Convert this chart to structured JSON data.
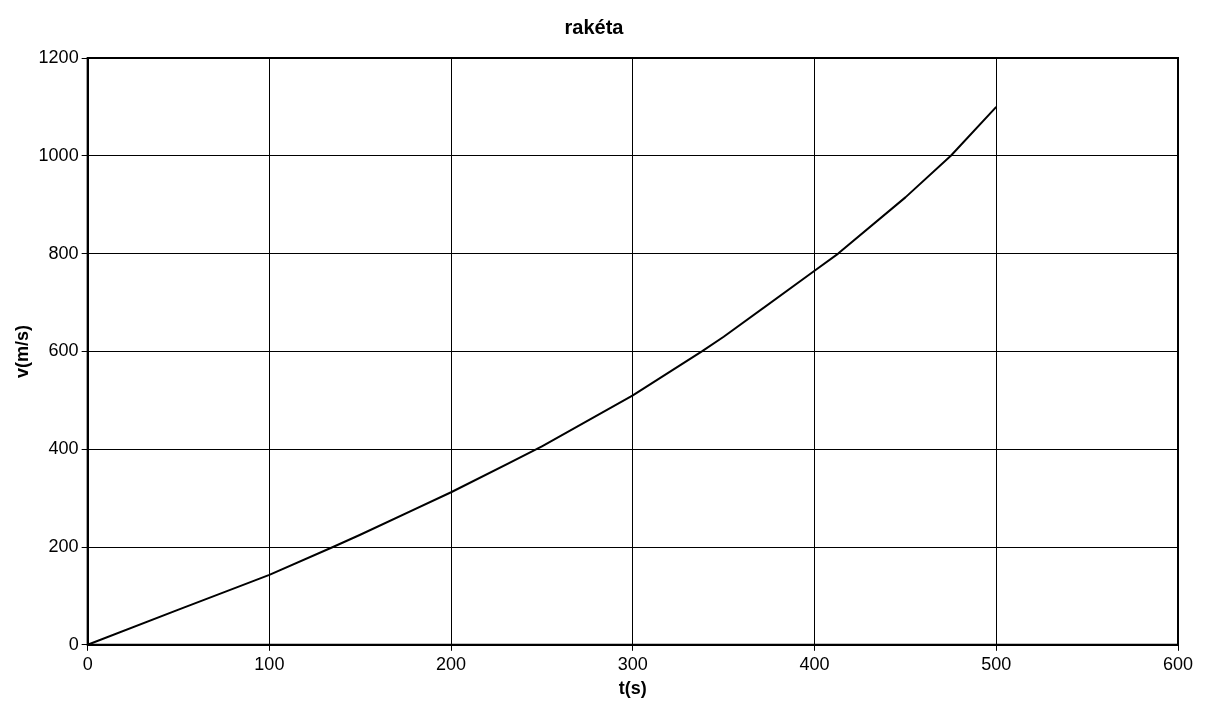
{
  "chart_data": {
    "type": "line",
    "title": "rakéta",
    "xlabel": "t(s)",
    "ylabel": "v(m/s)",
    "xlim": [
      0,
      600
    ],
    "xticks": [
      0,
      100,
      200,
      300,
      400,
      500,
      600
    ],
    "ylim": [
      0,
      1200
    ],
    "yticks": [
      0,
      200,
      400,
      600,
      800,
      1000,
      1200
    ],
    "grid": true,
    "legend": false,
    "marker": "none",
    "line_style": "solid",
    "series": [
      {
        "color": "#000000",
        "x": [
          0,
          50,
          100,
          135,
          150,
          200,
          247,
          250,
          300,
          338,
          350,
          400,
          413,
          450,
          475,
          500
        ],
        "values": [
          0,
          72,
          143,
          200,
          225,
          312,
          400,
          406,
          510,
          600,
          630,
          765,
          800,
          915,
          1000,
          1100
        ]
      }
    ]
  }
}
